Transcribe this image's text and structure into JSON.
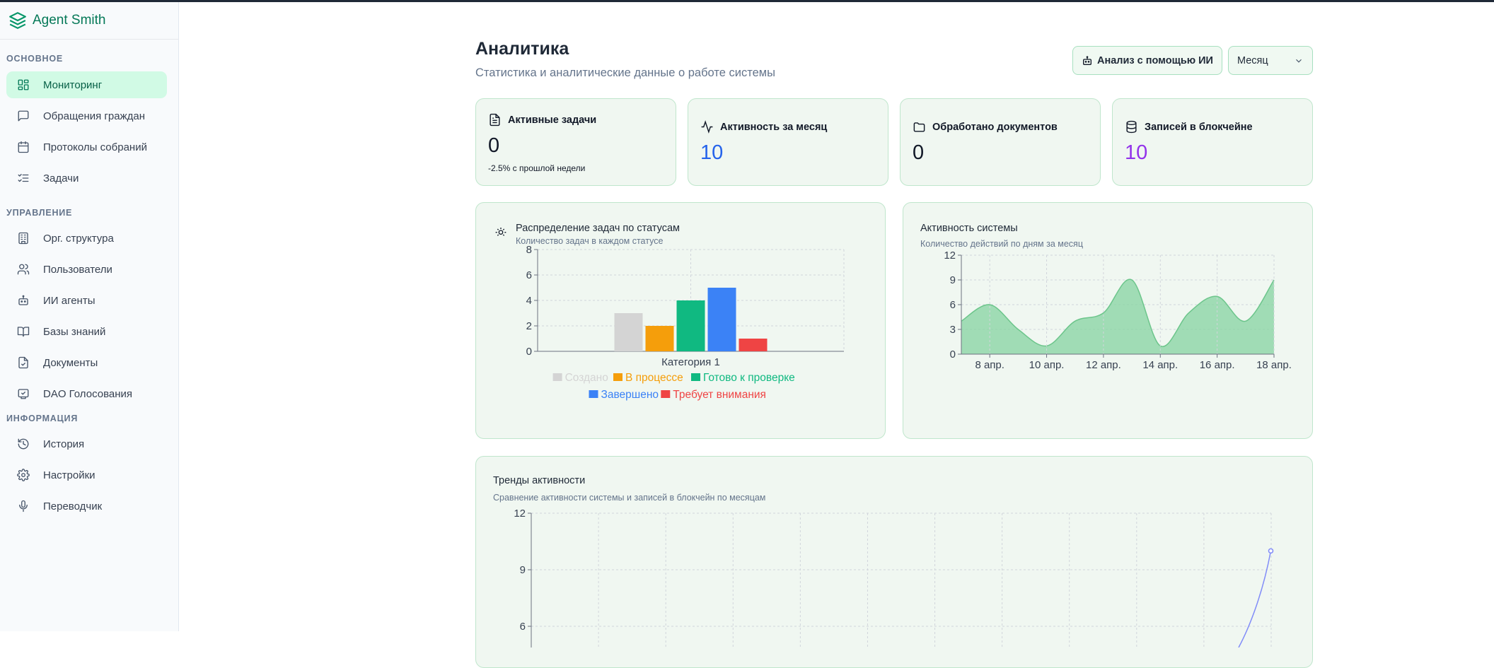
{
  "app": {
    "name": "Agent Smith"
  },
  "sidebar": {
    "sections": [
      {
        "title": "ОСНОВНОЕ",
        "items": [
          {
            "label": "Мониторинг",
            "icon": "dashboard-icon",
            "active": true
          },
          {
            "label": "Обращения граждан",
            "icon": "message-icon"
          },
          {
            "label": "Протоколы собраний",
            "icon": "calendar-icon"
          },
          {
            "label": "Задачи",
            "icon": "checklist-icon"
          }
        ]
      },
      {
        "title": "УПРАВЛЕНИЕ",
        "items": [
          {
            "label": "Орг. структура",
            "icon": "building-icon"
          },
          {
            "label": "Пользователи",
            "icon": "users-icon"
          },
          {
            "label": "ИИ агенты",
            "icon": "bot-icon"
          },
          {
            "label": "Базы знаний",
            "icon": "book-icon"
          },
          {
            "label": "Документы",
            "icon": "document-check-icon"
          },
          {
            "label": "DAO Голосования",
            "icon": "vote-icon"
          }
        ]
      },
      {
        "title": "ИНФОРМАЦИЯ",
        "items": [
          {
            "label": "История",
            "icon": "history-icon"
          },
          {
            "label": "Настройки",
            "icon": "gear-icon"
          },
          {
            "label": "Переводчик",
            "icon": "microphone-icon"
          }
        ]
      }
    ]
  },
  "header": {
    "title": "Аналитика",
    "subtitle": "Статистика и аналитические данные о работе системы",
    "ai_button": "Анализ с помощью ИИ",
    "period_select": "Месяц"
  },
  "stats": [
    {
      "label": "Активные задачи",
      "value": "0",
      "note": "-2.5% с прошлой недели",
      "icon": "document-icon",
      "color": "#111827"
    },
    {
      "label": "Активность за месяц",
      "value": "10",
      "icon": "activity-icon",
      "color": "#2563eb"
    },
    {
      "label": "Обработано документов",
      "value": "0",
      "icon": "folder-icon",
      "color": "#111827"
    },
    {
      "label": "Записей в блокчейне",
      "value": "10",
      "icon": "database-icon",
      "color": "#9333ea"
    }
  ],
  "charts": {
    "status": {
      "title": "Распределение задач по статусам",
      "subtitle": "Количество задач в каждом статусе"
    },
    "activity": {
      "title": "Активность системы",
      "subtitle": "Количество действий по дням за месяц"
    },
    "trends": {
      "title": "Тренды активности",
      "subtitle": "Сравнение активности системы и записей в блокчейн по месяцам"
    }
  },
  "chart_data": [
    {
      "type": "bar",
      "categories": [
        "Категория 1"
      ],
      "series": [
        {
          "name": "Создано",
          "values": [
            3
          ],
          "color": "#d4d4d4"
        },
        {
          "name": "В процессе",
          "values": [
            2
          ],
          "color": "#f59e0b"
        },
        {
          "name": "Готово к проверке",
          "values": [
            4
          ],
          "color": "#10b981"
        },
        {
          "name": "Завершено",
          "values": [
            5
          ],
          "color": "#3b82f6"
        },
        {
          "name": "Требует внимания",
          "values": [
            1
          ],
          "color": "#ef4444"
        }
      ],
      "ylim": [
        0,
        8
      ],
      "yticks": [
        "0",
        "2",
        "4",
        "6",
        "8"
      ],
      "legend": "bottom"
    },
    {
      "type": "area",
      "x": [
        "7 апр.",
        "8 апр.",
        "9 апр.",
        "10 апр.",
        "11 апр.",
        "12 апр.",
        "13 апр.",
        "14 апр.",
        "15 апр.",
        "16 апр.",
        "17 апр.",
        "18 апр."
      ],
      "xticks": [
        "8 апр.",
        "10 апр.",
        "12 апр.",
        "14 апр.",
        "16 апр.",
        "18 апр."
      ],
      "values": [
        4,
        6,
        3,
        1,
        4,
        5,
        9,
        1,
        5,
        7,
        4,
        9
      ],
      "ylim": [
        0,
        12
      ],
      "yticks": [
        "0",
        "3",
        "6",
        "9",
        "12"
      ],
      "color": "#86d3a0"
    },
    {
      "type": "line",
      "yticks_visible": [
        "6",
        "9",
        "12"
      ],
      "ylim": [
        0,
        12
      ],
      "series": [
        {
          "values": [
            10
          ],
          "color": "#818cf8"
        }
      ],
      "note": "only last point visible at value 10"
    }
  ]
}
